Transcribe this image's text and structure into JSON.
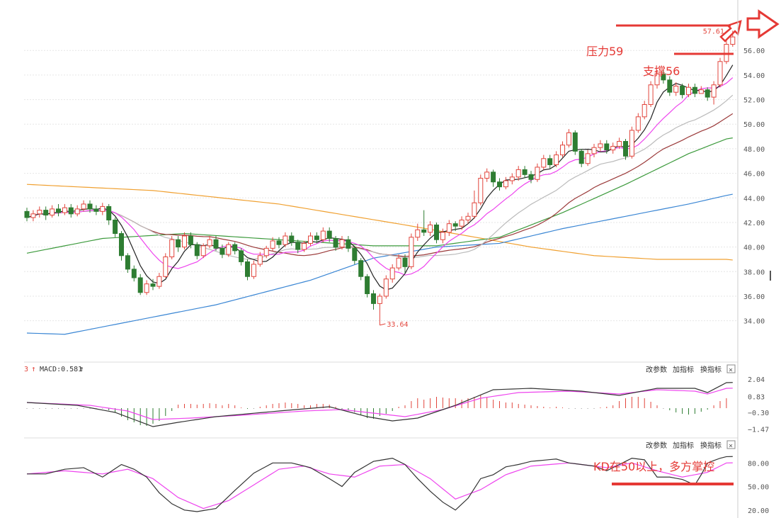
{
  "colors": {
    "up": "#e2453c",
    "down": "#2e7d32",
    "grid": "#e6e6e6",
    "axis_text": "#555555",
    "annotation": "#e53935",
    "ma5": "#222222",
    "ma10": "#ee44ee",
    "ma20": "#bbbbbb",
    "ma30": "#9b3a3a",
    "ma60": "#3c9a3c",
    "ma120": "#3a86d4",
    "ma250": "#f0a030",
    "dif": "#333333",
    "dea": "#ee44ee",
    "k": "#333333",
    "d": "#ee44ee"
  },
  "main": {
    "price_ticks": [
      "56.00",
      "54.00",
      "52.00",
      "50.00",
      "48.00",
      "46.00",
      "44.00",
      "42.00",
      "40.00",
      "38.00",
      "36.00",
      "34.00"
    ],
    "low_marker": "33.64",
    "high_marker": "57.61",
    "annotations": {
      "resistance": "压力59",
      "support": "支撑56"
    }
  },
  "macd_panel": {
    "header_prefix": "3",
    "header": "MACD:0.581",
    "buttons": [
      "改参数",
      "加指标",
      "换指标"
    ],
    "close_icon": "×",
    "ticks": [
      "2.04",
      "0.83",
      "−0.30",
      "−1.47"
    ]
  },
  "kd_panel": {
    "buttons": [
      "改参数",
      "加指标",
      "换指标"
    ],
    "close_icon": "×",
    "ticks": [
      "80.00",
      "50.00",
      "20.00"
    ],
    "annotation": "KD在50以上，多方掌控"
  },
  "chart_data": {
    "type": "candlestick",
    "candle_count": 112,
    "price_range": [
      33,
      57.8
    ],
    "candles": [
      [
        42.9,
        42.4,
        43.2,
        42.1
      ],
      [
        42.4,
        42.7,
        43.0,
        42.1
      ],
      [
        42.7,
        43.0,
        43.3,
        42.4
      ],
      [
        43.0,
        42.6,
        43.3,
        42.2
      ],
      [
        42.6,
        43.1,
        43.4,
        42.4
      ],
      [
        43.1,
        42.8,
        43.5,
        42.5
      ],
      [
        42.8,
        43.2,
        43.5,
        42.6
      ],
      [
        43.2,
        42.7,
        43.5,
        42.4
      ],
      [
        42.7,
        43.1,
        43.4,
        42.5
      ],
      [
        43.1,
        43.5,
        43.8,
        42.9
      ],
      [
        43.5,
        43.1,
        43.8,
        42.8
      ],
      [
        43.1,
        42.9,
        43.4,
        42.6
      ],
      [
        42.9,
        43.3,
        43.6,
        42.6
      ],
      [
        43.3,
        42.2,
        43.5,
        41.8
      ],
      [
        42.2,
        41.1,
        42.4,
        40.8
      ],
      [
        41.1,
        39.3,
        41.3,
        38.9
      ],
      [
        39.3,
        38.2,
        39.5,
        37.9
      ],
      [
        38.2,
        37.5,
        38.5,
        37.2
      ],
      [
        37.5,
        36.3,
        37.8,
        36.1
      ],
      [
        36.3,
        37.0,
        37.3,
        36.1
      ],
      [
        37.0,
        36.8,
        37.4,
        36.5
      ],
      [
        36.8,
        37.6,
        37.9,
        36.6
      ],
      [
        37.6,
        39.2,
        39.5,
        37.5
      ],
      [
        39.2,
        40.6,
        40.9,
        39.0
      ],
      [
        40.6,
        40.0,
        40.9,
        39.6
      ],
      [
        40.0,
        40.9,
        41.2,
        39.8
      ],
      [
        40.9,
        40.2,
        41.2,
        39.9
      ],
      [
        40.2,
        39.3,
        40.4,
        39.0
      ],
      [
        39.3,
        40.1,
        40.3,
        39.1
      ],
      [
        40.1,
        40.6,
        40.9,
        39.9
      ],
      [
        40.6,
        39.9,
        40.9,
        39.7
      ],
      [
        39.9,
        39.4,
        40.2,
        39.1
      ],
      [
        39.4,
        40.2,
        40.4,
        39.2
      ],
      [
        40.2,
        39.7,
        40.4,
        39.4
      ],
      [
        39.7,
        38.8,
        39.9,
        38.5
      ],
      [
        38.8,
        37.6,
        39.0,
        37.3
      ],
      [
        37.6,
        38.6,
        38.9,
        37.4
      ],
      [
        38.6,
        39.3,
        39.6,
        38.4
      ],
      [
        39.3,
        39.9,
        40.1,
        39.1
      ],
      [
        39.9,
        40.5,
        40.8,
        39.7
      ],
      [
        40.5,
        40.2,
        40.8,
        39.9
      ],
      [
        40.2,
        40.9,
        41.2,
        40.0
      ],
      [
        40.9,
        40.4,
        41.2,
        40.1
      ],
      [
        40.4,
        39.8,
        40.6,
        39.5
      ],
      [
        39.8,
        40.3,
        40.5,
        39.6
      ],
      [
        40.3,
        40.9,
        41.2,
        40.1
      ],
      [
        40.9,
        40.6,
        41.2,
        40.3
      ],
      [
        40.6,
        41.3,
        41.6,
        40.4
      ],
      [
        41.3,
        40.7,
        41.6,
        40.4
      ],
      [
        40.7,
        40.0,
        40.9,
        39.7
      ],
      [
        40.0,
        40.6,
        40.9,
        39.8
      ],
      [
        40.6,
        39.9,
        40.9,
        39.6
      ],
      [
        39.9,
        38.9,
        40.1,
        38.6
      ],
      [
        38.9,
        37.6,
        39.1,
        37.3
      ],
      [
        37.6,
        36.2,
        37.8,
        35.9
      ],
      [
        36.2,
        35.4,
        36.5,
        34.9
      ],
      [
        35.4,
        36.0,
        36.2,
        33.64
      ],
      [
        36.0,
        37.4,
        37.7,
        35.8
      ],
      [
        37.4,
        38.3,
        38.6,
        37.1
      ],
      [
        38.3,
        39.1,
        39.4,
        38.1
      ],
      [
        39.1,
        38.4,
        39.4,
        37.9
      ],
      [
        38.4,
        40.8,
        41.1,
        38.2
      ],
      [
        40.8,
        41.4,
        41.9,
        40.5
      ],
      [
        41.4,
        41.2,
        43.0,
        40.9
      ],
      [
        41.2,
        41.8,
        42.1,
        40.9
      ],
      [
        41.8,
        40.6,
        42.0,
        40.3
      ],
      [
        40.6,
        41.2,
        41.5,
        40.3
      ],
      [
        41.2,
        41.9,
        42.2,
        40.9
      ],
      [
        41.9,
        41.7,
        42.1,
        41.3
      ],
      [
        41.7,
        42.2,
        42.5,
        41.4
      ],
      [
        42.2,
        42.5,
        42.8,
        41.9
      ],
      [
        42.5,
        43.6,
        44.6,
        42.3
      ],
      [
        43.6,
        45.6,
        45.9,
        43.4
      ],
      [
        45.6,
        46.1,
        46.4,
        45.3
      ],
      [
        46.1,
        45.3,
        46.3,
        44.9
      ],
      [
        45.3,
        44.9,
        45.6,
        44.6
      ],
      [
        44.9,
        45.4,
        45.7,
        44.7
      ],
      [
        45.4,
        45.7,
        46.0,
        45.1
      ],
      [
        45.7,
        46.3,
        46.6,
        45.4
      ],
      [
        46.3,
        45.9,
        46.6,
        45.6
      ],
      [
        45.9,
        45.5,
        46.2,
        45.2
      ],
      [
        45.5,
        46.5,
        46.8,
        45.3
      ],
      [
        46.5,
        47.2,
        47.5,
        46.3
      ],
      [
        47.2,
        46.7,
        47.5,
        46.4
      ],
      [
        46.7,
        47.5,
        47.8,
        46.5
      ],
      [
        47.5,
        48.3,
        48.6,
        47.3
      ],
      [
        48.3,
        49.3,
        49.6,
        48.1
      ],
      [
        49.3,
        47.8,
        49.5,
        47.5
      ],
      [
        47.8,
        46.8,
        48.0,
        46.5
      ],
      [
        46.8,
        47.6,
        47.9,
        46.6
      ],
      [
        47.6,
        48.1,
        48.4,
        47.3
      ],
      [
        48.1,
        48.4,
        48.7,
        47.8
      ],
      [
        48.4,
        47.9,
        48.7,
        47.6
      ],
      [
        47.9,
        48.2,
        48.5,
        47.6
      ],
      [
        48.2,
        48.6,
        48.9,
        48.0
      ],
      [
        48.6,
        47.4,
        48.8,
        47.1
      ],
      [
        47.4,
        49.5,
        49.8,
        47.2
      ],
      [
        49.5,
        50.6,
        50.9,
        49.3
      ],
      [
        50.6,
        51.6,
        51.9,
        50.4
      ],
      [
        51.6,
        53.2,
        53.5,
        51.4
      ],
      [
        53.2,
        54.1,
        54.4,
        52.9
      ],
      [
        54.1,
        53.6,
        54.4,
        53.3
      ],
      [
        53.6,
        52.6,
        53.9,
        52.3
      ],
      [
        52.6,
        53.1,
        53.4,
        52.3
      ],
      [
        53.1,
        52.4,
        53.3,
        52.1
      ],
      [
        52.4,
        53.0,
        53.3,
        52.2
      ],
      [
        53.0,
        52.5,
        53.3,
        52.2
      ],
      [
        52.5,
        52.8,
        53.1,
        52.5
      ],
      [
        52.8,
        52.2,
        53.0,
        51.9
      ],
      [
        52.2,
        53.2,
        53.5,
        51.6
      ],
      [
        53.2,
        55.1,
        55.4,
        53.0
      ],
      [
        55.1,
        56.5,
        56.8,
        54.9
      ],
      [
        56.5,
        57.1,
        57.61,
        56.3
      ]
    ],
    "moving_average_periods": [
      5,
      10,
      20,
      30,
      60,
      120,
      250
    ],
    "ma250": [
      [
        0,
        45.1
      ],
      [
        20,
        44.6
      ],
      [
        40,
        43.5
      ],
      [
        60,
        41.8
      ],
      [
        70,
        40.9
      ],
      [
        80,
        40.0
      ],
      [
        90,
        39.3
      ],
      [
        100,
        39.0
      ],
      [
        111,
        39.0
      ]
    ],
    "ma120": [
      [
        0,
        33.0
      ],
      [
        6,
        32.9
      ],
      [
        15,
        33.8
      ],
      [
        30,
        35.3
      ],
      [
        45,
        37.3
      ],
      [
        55,
        39.1
      ],
      [
        65,
        40.0
      ],
      [
        75,
        40.3
      ],
      [
        85,
        41.5
      ],
      [
        95,
        42.5
      ],
      [
        105,
        43.5
      ],
      [
        111,
        44.2
      ]
    ],
    "ma60": [
      [
        0,
        39.5
      ],
      [
        12,
        40.7
      ],
      [
        25,
        41.1
      ],
      [
        40,
        40.6
      ],
      [
        55,
        40.1
      ],
      [
        65,
        40.1
      ],
      [
        75,
        40.8
      ],
      [
        85,
        42.8
      ],
      [
        95,
        45.1
      ],
      [
        105,
        47.6
      ],
      [
        111,
        48.8
      ]
    ],
    "macd": {
      "label": "MACD",
      "value": 0.581,
      "ticks": [
        2.04,
        0.83,
        -0.3,
        -1.47
      ],
      "dif": [
        [
          0,
          0.4
        ],
        [
          8,
          0.2
        ],
        [
          14,
          -0.3
        ],
        [
          20,
          -1.3
        ],
        [
          24,
          -1.0
        ],
        [
          30,
          -0.6
        ],
        [
          40,
          -0.2
        ],
        [
          48,
          0.1
        ],
        [
          54,
          -0.6
        ],
        [
          58,
          -0.9
        ],
        [
          62,
          -0.7
        ],
        [
          68,
          0.2
        ],
        [
          74,
          1.3
        ],
        [
          80,
          1.4
        ],
        [
          88,
          1.2
        ],
        [
          94,
          0.9
        ],
        [
          100,
          1.4
        ],
        [
          106,
          1.4
        ],
        [
          108,
          1.1
        ],
        [
          111,
          1.8
        ]
      ],
      "dea": [
        [
          0,
          0.4
        ],
        [
          10,
          0.2
        ],
        [
          16,
          -0.2
        ],
        [
          20,
          -0.8
        ],
        [
          26,
          -0.7
        ],
        [
          34,
          -0.5
        ],
        [
          44,
          -0.2
        ],
        [
          50,
          -0.1
        ],
        [
          56,
          -0.4
        ],
        [
          60,
          -0.6
        ],
        [
          66,
          -0.1
        ],
        [
          72,
          0.7
        ],
        [
          78,
          1.1
        ],
        [
          86,
          1.2
        ],
        [
          94,
          1.0
        ],
        [
          100,
          1.3
        ],
        [
          106,
          1.2
        ],
        [
          108,
          1.0
        ],
        [
          111,
          1.4
        ]
      ],
      "hist": [
        0,
        0,
        0,
        0,
        0,
        0,
        0,
        0,
        0,
        0,
        0,
        0,
        0,
        -0.15,
        -0.3,
        -0.6,
        -0.85,
        -1.0,
        -1.2,
        -1.25,
        -1.1,
        -0.9,
        -0.55,
        -0.2,
        0.25,
        0.3,
        0.3,
        0.25,
        0.3,
        0.35,
        0.3,
        0.2,
        0.3,
        0.2,
        0.05,
        -0.05,
        0,
        0.1,
        0.2,
        0.3,
        0.35,
        0.4,
        0.35,
        0.3,
        0.2,
        0.2,
        0.3,
        0.3,
        0.25,
        0.1,
        -0.05,
        -0.15,
        -0.3,
        -0.5,
        -0.7,
        -0.75,
        -0.55,
        -0.4,
        -0.2,
        0.1,
        0.2,
        0.5,
        0.7,
        0.6,
        0.7,
        0.8,
        0.75,
        0.7,
        0.7,
        0.6,
        0.7,
        0.8,
        0.9,
        0.75,
        0.6,
        0.5,
        0.4,
        0.4,
        0.3,
        0.25,
        0.2,
        0.15,
        0.1,
        0.05,
        0.1,
        0.05,
        0,
        0,
        0,
        0,
        0,
        0.05,
        0.1,
        0.2,
        0.5,
        0.7,
        0.8,
        0.8,
        0.7,
        0.45,
        0.2,
        0,
        -0.15,
        -0.3,
        -0.4,
        -0.45,
        -0.4,
        -0.25,
        -0.1,
        0.2,
        0.5,
        0.7
      ]
    },
    "kd": {
      "ticks": [
        80,
        50,
        20
      ],
      "range": [
        18,
        92
      ],
      "k": [
        [
          0,
          66
        ],
        [
          3,
          66
        ],
        [
          6,
          72
        ],
        [
          9,
          74
        ],
        [
          12,
          62
        ],
        [
          15,
          78
        ],
        [
          17,
          72
        ],
        [
          19,
          62
        ],
        [
          21,
          42
        ],
        [
          23,
          28
        ],
        [
          25,
          20
        ],
        [
          27,
          18
        ],
        [
          30,
          22
        ],
        [
          33,
          45
        ],
        [
          36,
          67
        ],
        [
          39,
          80
        ],
        [
          42,
          80
        ],
        [
          45,
          74
        ],
        [
          48,
          60
        ],
        [
          50,
          50
        ],
        [
          52,
          68
        ],
        [
          55,
          82
        ],
        [
          58,
          86
        ],
        [
          60,
          78
        ],
        [
          62,
          60
        ],
        [
          64,
          44
        ],
        [
          66,
          30
        ],
        [
          68,
          20
        ],
        [
          70,
          35
        ],
        [
          72,
          60
        ],
        [
          74,
          65
        ],
        [
          76,
          75
        ],
        [
          78,
          78
        ],
        [
          80,
          82
        ],
        [
          84,
          85
        ],
        [
          86,
          80
        ],
        [
          90,
          76
        ],
        [
          92,
          70
        ],
        [
          94,
          78
        ],
        [
          96,
          86
        ],
        [
          98,
          84
        ],
        [
          100,
          62
        ],
        [
          102,
          62
        ],
        [
          104,
          59
        ],
        [
          106,
          52
        ],
        [
          107,
          65
        ],
        [
          108,
          80
        ],
        [
          110,
          86
        ],
        [
          111,
          88
        ]
      ],
      "d": [
        [
          0,
          66
        ],
        [
          6,
          70
        ],
        [
          12,
          66
        ],
        [
          16,
          72
        ],
        [
          20,
          60
        ],
        [
          24,
          36
        ],
        [
          28,
          22
        ],
        [
          32,
          32
        ],
        [
          36,
          52
        ],
        [
          40,
          72
        ],
        [
          44,
          76
        ],
        [
          48,
          66
        ],
        [
          52,
          62
        ],
        [
          56,
          76
        ],
        [
          60,
          78
        ],
        [
          64,
          60
        ],
        [
          68,
          34
        ],
        [
          72,
          46
        ],
        [
          76,
          65
        ],
        [
          80,
          76
        ],
        [
          86,
          80
        ],
        [
          92,
          74
        ],
        [
          96,
          80
        ],
        [
          100,
          70
        ],
        [
          104,
          62
        ],
        [
          108,
          68
        ],
        [
          111,
          80
        ]
      ]
    }
  }
}
